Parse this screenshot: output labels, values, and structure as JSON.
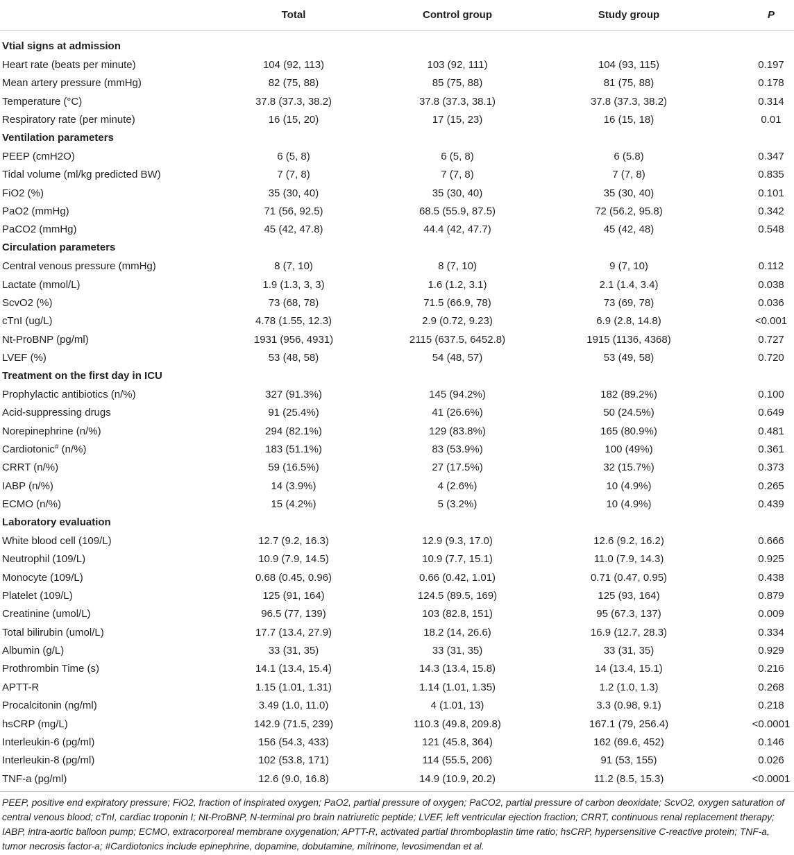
{
  "table": {
    "columns": {
      "total": "Total",
      "control": "Control group",
      "study": "Study group",
      "p": "P"
    },
    "sections": [
      {
        "title": "Vtial signs at admission",
        "rows": [
          {
            "label": "Heart rate (beats per minute)",
            "total": "104 (92, 113)",
            "control": "103 (92, 111)",
            "study": "104 (93, 115)",
            "p": "0.197"
          },
          {
            "label": "Mean artery pressure (mmHg)",
            "total": "82 (75, 88)",
            "control": "85 (75, 88)",
            "study": "81 (75, 88)",
            "p": "0.178"
          },
          {
            "label": "Temperature (°C)",
            "total": "37.8 (37.3, 38.2)",
            "control": "37.8 (37.3, 38.1)",
            "study": "37.8 (37.3, 38.2)",
            "p": "0.314"
          },
          {
            "label": "Respiratory rate (per minute)",
            "total": "16 (15, 20)",
            "control": "17 (15, 23)",
            "study": "16 (15, 18)",
            "p": "0.01"
          }
        ]
      },
      {
        "title": "Ventilation parameters",
        "rows": [
          {
            "label": "PEEP (cmH2O)",
            "total": "6 (5, 8)",
            "control": "6 (5, 8)",
            "study": "6 (5.8)",
            "p": "0.347"
          },
          {
            "label": "Tidal volume (ml/kg predicted BW)",
            "total": "7 (7, 8)",
            "control": "7 (7, 8)",
            "study": "7 (7, 8)",
            "p": "0.835"
          },
          {
            "label": "FiO2 (%)",
            "total": "35 (30, 40)",
            "control": "35 (30, 40)",
            "study": "35 (30, 40)",
            "p": "0.101"
          },
          {
            "label": "PaO2 (mmHg)",
            "total": "71 (56, 92.5)",
            "control": "68.5 (55.9, 87.5)",
            "study": "72 (56.2, 95.8)",
            "p": "0.342"
          },
          {
            "label": "PaCO2 (mmHg)",
            "total": "45 (42, 47.8)",
            "control": "44.4 (42, 47.7)",
            "study": "45 (42, 48)",
            "p": "0.548"
          }
        ]
      },
      {
        "title": "Circulation parameters",
        "rows": [
          {
            "label": "Central venous pressure (mmHg)",
            "total": "8 (7, 10)",
            "control": "8 (7, 10)",
            "study": "9 (7, 10)",
            "p": "0.112"
          },
          {
            "label": "Lactate (mmol/L)",
            "total": "1.9 (1.3, 3, 3)",
            "control": "1.6 (1.2, 3.1)",
            "study": "2.1 (1.4, 3.4)",
            "p": "0.038"
          },
          {
            "label": "ScvO2 (%)",
            "total": "73 (68, 78)",
            "control": "71.5 (66.9, 78)",
            "study": "73 (69, 78)",
            "p": "0.036"
          },
          {
            "label": "cTnI (ug/L)",
            "total": "4.78 (1.55, 12.3)",
            "control": "2.9 (0.72, 9.23)",
            "study": "6.9 (2.8, 14.8)",
            "p": "<0.001"
          },
          {
            "label": "Nt-ProBNP (pg/ml)",
            "total": "1931 (956, 4931)",
            "control": "2115 (637.5, 6452.8)",
            "study": "1915 (1136, 4368)",
            "p": "0.727"
          },
          {
            "label": "LVEF (%)",
            "total": "53 (48, 58)",
            "control": "54 (48, 57)",
            "study": "53 (49, 58)",
            "p": "0.720"
          }
        ]
      },
      {
        "title": "Treatment on the first day in ICU",
        "rows": [
          {
            "label": "Prophylactic antibiotics (n/%)",
            "total": "327 (91.3%)",
            "control": "145 (94.2%)",
            "study": "182 (89.2%)",
            "p": "0.100"
          },
          {
            "label": "Acid-suppressing drugs",
            "total": "91 (25.4%)",
            "control": "41 (26.6%)",
            "study": "50 (24.5%)",
            "p": "0.649"
          },
          {
            "label": "Norepinephrine (n/%)",
            "total": "294 (82.1%)",
            "control": "129 (83.8%)",
            "study": "165 (80.9%)",
            "p": "0.481"
          },
          {
            "label": "Cardiotonic",
            "sup": "#",
            "label_suffix": " (n/%)",
            "total": "183 (51.1%)",
            "control": "83 (53.9%)",
            "study": "100 (49%)",
            "p": "0.361"
          },
          {
            "label": "CRRT (n/%)",
            "total": "59 (16.5%)",
            "control": "27 (17.5%)",
            "study": "32 (15.7%)",
            "p": "0.373"
          },
          {
            "label": "IABP (n/%)",
            "total": "14 (3.9%)",
            "control": "4 (2.6%)",
            "study": "10 (4.9%)",
            "p": "0.265"
          },
          {
            "label": "ECMO (n/%)",
            "total": "15 (4.2%)",
            "control": "5 (3.2%)",
            "study": "10 (4.9%)",
            "p": "0.439"
          }
        ]
      },
      {
        "title": "Laboratory evaluation",
        "rows": [
          {
            "label": "White blood cell (109/L)",
            "total": "12.7 (9.2, 16.3)",
            "control": "12.9 (9.3, 17.0)",
            "study": "12.6 (9.2, 16.2)",
            "p": "0.666"
          },
          {
            "label": "Neutrophil (109/L)",
            "total": "10.9 (7.9, 14.5)",
            "control": "10.9 (7.7, 15.1)",
            "study": "11.0 (7.9, 14.3)",
            "p": "0.925"
          },
          {
            "label": "Monocyte (109/L)",
            "total": "0.68 (0.45, 0.96)",
            "control": "0.66 (0.42, 1.01)",
            "study": "0.71 (0.47, 0.95)",
            "p": "0.438"
          },
          {
            "label": "Platelet (109/L)",
            "total": "125 (91, 164)",
            "control": "124.5 (89.5, 169)",
            "study": "125 (93, 164)",
            "p": "0.879"
          },
          {
            "label": "Creatinine (umol/L)",
            "total": "96.5 (77, 139)",
            "control": "103 (82.8, 151)",
            "study": "95 (67.3, 137)",
            "p": "0.009"
          },
          {
            "label": "Total bilirubin (umol/L)",
            "total": "17.7 (13.4, 27.9)",
            "control": "18.2 (14, 26.6)",
            "study": "16.9 (12.7, 28.3)",
            "p": "0.334"
          },
          {
            "label": "Albumin (g/L)",
            "total": "33 (31, 35)",
            "control": "33 (31, 35)",
            "study": "33 (31, 35)",
            "p": "0.929"
          },
          {
            "label": "Prothrombin Time (s)",
            "total": "14.1 (13.4, 15.4)",
            "control": "14.3 (13.4, 15.8)",
            "study": "14 (13.4, 15.1)",
            "p": "0.216"
          },
          {
            "label": "APTT-R",
            "total": "1.15 (1.01, 1.31)",
            "control": "1.14 (1.01, 1.35)",
            "study": "1.2 (1.0, 1.3)",
            "p": "0.268"
          },
          {
            "label": "Procalcitonin (ng/ml)",
            "total": "3.49 (1.0, 11.0)",
            "control": "4 (1.01, 13)",
            "study": "3.3 (0.98, 9.1)",
            "p": "0.218"
          },
          {
            "label": "hsCRP (mg/L)",
            "total": "142.9 (71.5, 239)",
            "control": "110.3 (49.8, 209.8)",
            "study": "167.1 (79, 256.4)",
            "p": "<0.0001"
          },
          {
            "label": "Interleukin-6 (pg/ml)",
            "total": "156 (54.3, 433)",
            "control": "121 (45.8, 364)",
            "study": "162 (69.6, 452)",
            "p": "0.146"
          },
          {
            "label": "Interleukin-8 (pg/ml)",
            "total": "102 (53.8, 171)",
            "control": "114 (55.5, 206)",
            "study": "91 (53, 155)",
            "p": "0.026"
          },
          {
            "label": "TNF-a (pg/ml)",
            "total": "12.6 (9.0, 16.8)",
            "control": "14.9 (10.9, 20.2)",
            "study": "11.2 (8.5, 15.3)",
            "p": "<0.0001"
          }
        ]
      }
    ]
  },
  "footnote": [
    "PEEP, positive end expiratory pressure; FiO2, fraction of inspirated oxygen; PaO2, partial pressure of oxygen; PaCO2, partial pressure of carbon deoxidate; ScvO2, oxygen saturation of",
    "central venous blood; cTnI, cardiac troponin I; Nt-ProBNP, N-terminal pro brain natriuretic peptide; LVEF, left ventricular ejection fraction; CRRT, continuous renal replacement therapy;",
    "IABP, intra-aortic balloon pump; ECMO, extracorporeal membrane oxygenation; APTT-R, activated partial thromboplastin time ratio; hsCRP, hypersensitive C-reactive protein; TNF-a,",
    "tumor necrosis factor-a; #Cardiotonics include epinephrine, dopamine, dobutamine, milrinone, levosimendan et al."
  ]
}
